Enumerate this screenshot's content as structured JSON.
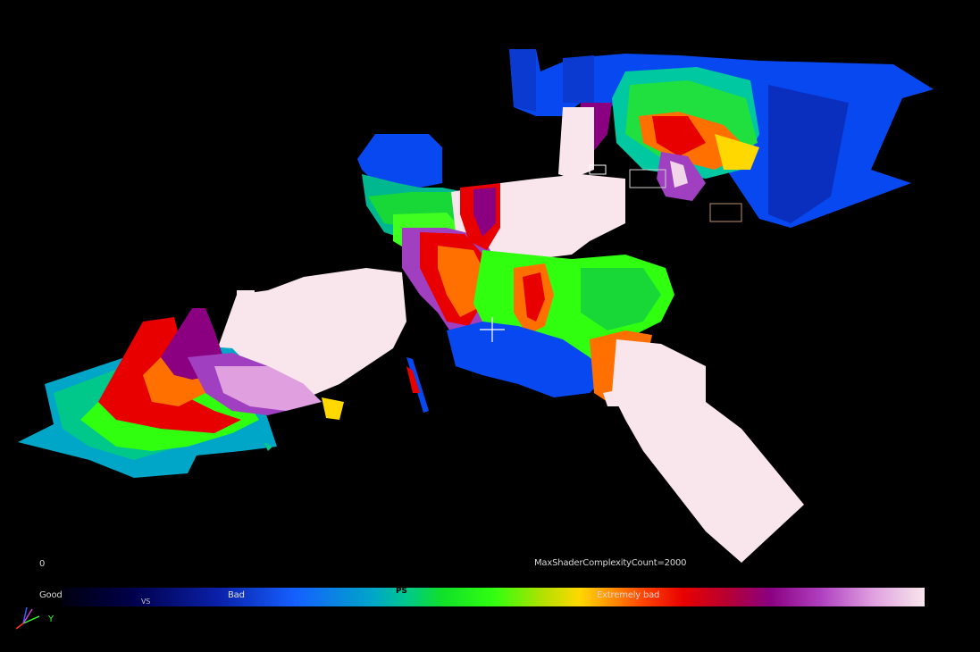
{
  "viewport": {
    "mode": "Shader Complexity",
    "axis_label_y": "Y"
  },
  "hud": {
    "min_value": "0",
    "max_count_label": "MaxShaderComplexityCount=2000",
    "legend_good": "Good",
    "legend_bad": "Bad",
    "legend_extremely_bad": "Extremely bad",
    "legend_marker_vs": "VS",
    "legend_marker_ps": "PS"
  },
  "colors": {
    "background": "#000000",
    "good": "#00004a",
    "bad": "#1560ff",
    "mid": "#30ff10",
    "extremely_bad": "#e80000",
    "worst": "#f8e6ec"
  }
}
